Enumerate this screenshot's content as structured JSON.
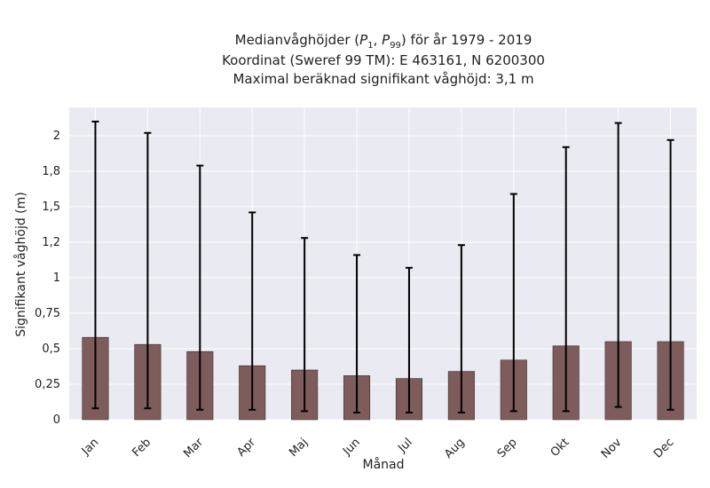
{
  "title_line1_prefix": "Medianvåghöjder (",
  "title_line1_p1": "P",
  "title_line1_p1_sub": "1",
  "title_line1_sep": ", ",
  "title_line1_p99": "P",
  "title_line1_p99_sub": "99",
  "title_line1_suffix": ") för år 1979 - 2019",
  "title_line2": "Koordinat (Sweref 99 TM): E 463161, N 6200300",
  "title_line3": "Maximal beräknad signifikant våghöjd: 3,1 m",
  "colors": {
    "bar": "#7e5c5c",
    "plot_bg": "#eaeaf2",
    "grid": "#ffffff",
    "errorbar": "#000000"
  },
  "chart_data": {
    "type": "bar",
    "xlabel": "Månad",
    "ylabel": "Signifikant våghöjd (m)",
    "categories": [
      "Jan",
      "Feb",
      "Mar",
      "Apr",
      "Maj",
      "Jun",
      "Jul",
      "Aug",
      "Sep",
      "Okt",
      "Nov",
      "Dec"
    ],
    "values": [
      0.58,
      0.53,
      0.48,
      0.38,
      0.35,
      0.31,
      0.29,
      0.34,
      0.42,
      0.52,
      0.55,
      0.55
    ],
    "p1": [
      0.08,
      0.08,
      0.07,
      0.07,
      0.06,
      0.05,
      0.05,
      0.05,
      0.06,
      0.06,
      0.09,
      0.07
    ],
    "p99": [
      2.1,
      2.02,
      1.79,
      1.46,
      1.28,
      1.16,
      1.07,
      1.23,
      1.59,
      1.92,
      2.09,
      1.97
    ],
    "ylim": [
      0,
      2.2
    ],
    "yticks": [
      0,
      0.25,
      0.5,
      0.75,
      1,
      1.25,
      1.5,
      1.75,
      2
    ],
    "yticklabels": [
      "0",
      "0,25",
      "0,5",
      "0,75",
      "1",
      "1,2",
      "1,5",
      "1,8",
      "2"
    ],
    "grid": true
  }
}
